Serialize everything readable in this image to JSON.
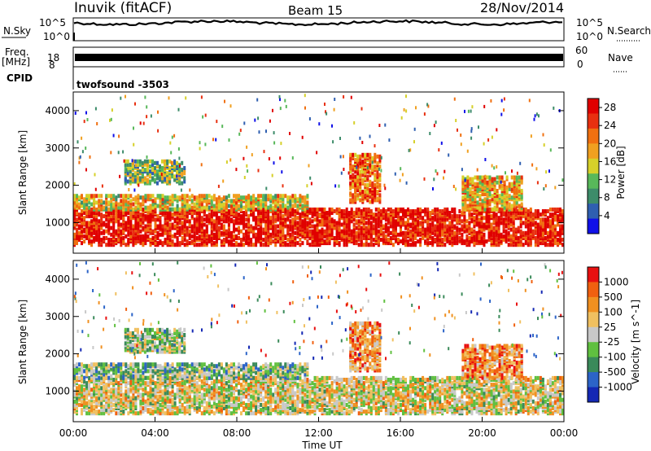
{
  "header": {
    "station": "Inuvik (fitACF)",
    "beam": "Beam 15",
    "date": "28/Nov/2014"
  },
  "strips": {
    "nsky_label": "N.Sky",
    "nsky_ticks": [
      "10^5",
      "10^0"
    ],
    "nsearch_label": "N.Search",
    "nsearch_ticks": [
      "10^5",
      "10^0"
    ],
    "freq_label": "Freq.",
    "freq_unit": "[MHz]",
    "freq_ticks": [
      "18",
      "8"
    ],
    "nave_label": "Nave",
    "nave_ticks": [
      "60",
      "0"
    ],
    "cpid_label": "CPID",
    "cpid_text": "twofsound -3503"
  },
  "xaxis": {
    "label": "Time UT",
    "ticks": [
      "00:00",
      "04:00",
      "08:00",
      "12:00",
      "16:00",
      "20:00",
      "00:00"
    ]
  },
  "colors": {
    "background": "#ffffff",
    "axis": "#000000"
  },
  "chart_data": [
    {
      "type": "heatmap",
      "title": "Power",
      "ylabel": "Slant Range [km]",
      "y_ticks": [
        1000,
        2000,
        3000,
        4000
      ],
      "ylim": [
        180,
        4500
      ],
      "xlim_hours": [
        0,
        24
      ],
      "colorbar": {
        "label": "Power [dB]",
        "ticks": [
          4,
          8,
          12,
          16,
          20,
          24,
          28
        ],
        "range": [
          0,
          30
        ],
        "colors": [
          "#1010e8",
          "#2f5fb0",
          "#3d8c6a",
          "#58b85a",
          "#d6d02a",
          "#f0a020",
          "#f07010",
          "#e83010",
          "#e00000"
        ]
      },
      "echo_bands": [
        {
          "t0": 0.0,
          "t1": 24.0,
          "r0": 350,
          "r1": 1300,
          "level": 0.92
        },
        {
          "t0": 0.0,
          "t1": 11.5,
          "r0": 1300,
          "r1": 1700,
          "level": 0.55
        },
        {
          "t0": 2.5,
          "t1": 5.5,
          "r0": 2000,
          "r1": 2600,
          "level": 0.4
        },
        {
          "t0": 13.5,
          "t1": 15.0,
          "r0": 1500,
          "r1": 2800,
          "level": 0.75
        },
        {
          "t0": 19.0,
          "t1": 22.0,
          "r0": 1300,
          "r1": 2200,
          "level": 0.6
        }
      ]
    },
    {
      "type": "heatmap",
      "title": "Velocity",
      "ylabel": "Slant Range [km]",
      "y_ticks": [
        1000,
        2000,
        3000,
        4000
      ],
      "ylim": [
        180,
        4500
      ],
      "xlim_hours": [
        0,
        24
      ],
      "colorbar": {
        "label": "Velocity [m s^-1]",
        "ticks": [
          "1000",
          "500",
          "100",
          "25",
          "-25",
          "-100",
          "-500",
          "-1000"
        ],
        "colors": [
          "#1428b4",
          "#2c64c8",
          "#3a8a5a",
          "#60c040",
          "#c8c8c8",
          "#f0c060",
          "#f09020",
          "#f06010",
          "#e81010"
        ]
      },
      "echo_bands": [
        {
          "t0": 0.0,
          "t1": 24.0,
          "r0": 350,
          "r1": 1300,
          "level": 0.55
        },
        {
          "t0": 0.0,
          "t1": 11.5,
          "r0": 1300,
          "r1": 1700,
          "level": 0.4
        },
        {
          "t0": 2.5,
          "t1": 5.5,
          "r0": 2000,
          "r1": 2600,
          "level": 0.45
        },
        {
          "t0": 13.5,
          "t1": 15.0,
          "r0": 1500,
          "r1": 2800,
          "level": 0.7
        },
        {
          "t0": 19.0,
          "t1": 22.0,
          "r0": 1300,
          "r1": 2200,
          "level": 0.75
        }
      ]
    }
  ]
}
